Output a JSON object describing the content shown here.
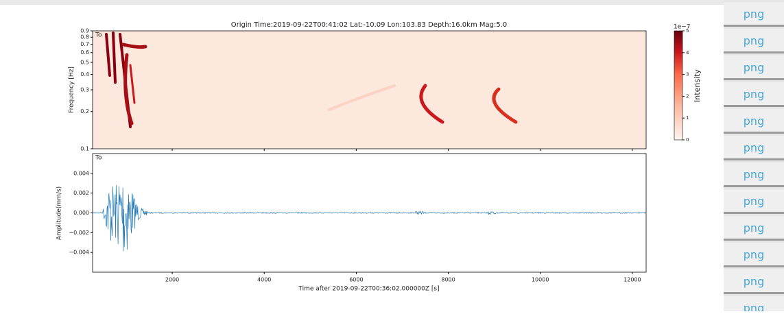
{
  "chart_data": [
    {
      "type": "spectrogram",
      "title": "Origin Time:2019-09-22T00:41:02   Lat:-10.09   Lon:103.83   Depth:16.0km   Mag:5.0",
      "ylabel": "Frequency [Hz]",
      "annotation": "To",
      "log_y": true,
      "ylim": [
        0.1,
        0.9
      ],
      "yticks": [
        0.1,
        0.2,
        0.3,
        0.4,
        0.5,
        0.6,
        0.7,
        0.8,
        0.9
      ],
      "xlim": [
        270,
        12300
      ],
      "colorbar": {
        "label": "Intensity",
        "scale_label": "1e−7",
        "lim": [
          0,
          5
        ],
        "ticks": [
          0,
          1,
          2,
          3,
          4,
          5
        ]
      }
    },
    {
      "type": "waveform",
      "ylabel": "Amplitude(mm/s)",
      "xlabel": "Time after 2019-09-22T00:36:02.000000Z [s]",
      "annotation": "To",
      "color": "#1f77b4",
      "xlim": [
        270,
        12300
      ],
      "xticks": [
        2000,
        4000,
        6000,
        8000,
        10000,
        12000
      ],
      "ylim": [
        -0.006,
        0.006
      ],
      "yticks": [
        {
          "value": -0.004,
          "label": "−0.004"
        },
        {
          "value": -0.002,
          "label": "−0.002"
        },
        {
          "value": 0,
          "label": "0.000"
        },
        0.002,
        0.004
      ]
    }
  ],
  "sidebar": {
    "links": [
      "png",
      "png",
      "png",
      "png",
      "png",
      "png",
      "png",
      "png",
      "png",
      "png",
      "png",
      "png"
    ]
  }
}
